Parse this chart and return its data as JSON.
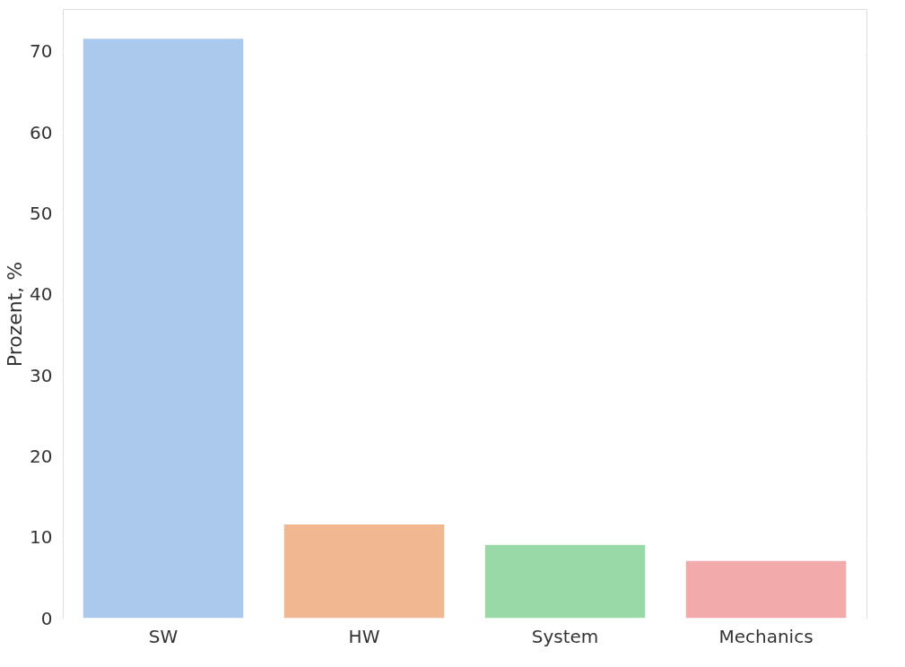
{
  "chart_data": {
    "type": "bar",
    "ylabel": "Prozent, %",
    "categories": [
      "SW",
      "HW",
      "System",
      "Mechanics"
    ],
    "values": [
      71.7,
      11.7,
      9.2,
      7.2
    ],
    "colors": [
      "#abc9ec",
      "#f0b790",
      "#98d9a7",
      "#f2aaaa"
    ],
    "ylim": [
      0,
      75.3
    ],
    "yticks": [
      0,
      10,
      20,
      30,
      40,
      50,
      60,
      70
    ],
    "grid": "y",
    "legend": false
  }
}
